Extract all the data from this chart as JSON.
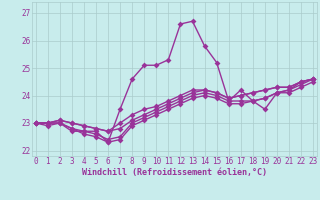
{
  "xlabel": "Windchill (Refroidissement éolien,°C)",
  "background_color": "#c8ecec",
  "line_color": "#993399",
  "grid_color": "#aacccc",
  "xlim": [
    -0.3,
    23.3
  ],
  "ylim": [
    21.8,
    27.4
  ],
  "yticks": [
    22,
    23,
    24,
    25,
    26,
    27
  ],
  "xticks": [
    0,
    1,
    2,
    3,
    4,
    5,
    6,
    7,
    8,
    9,
    10,
    11,
    12,
    13,
    14,
    15,
    16,
    17,
    18,
    19,
    20,
    21,
    22,
    23
  ],
  "hours": [
    0,
    1,
    2,
    3,
    4,
    5,
    6,
    7,
    8,
    9,
    10,
    11,
    12,
    13,
    14,
    15,
    16,
    17,
    18,
    19,
    20,
    21,
    22,
    23
  ],
  "series": [
    [
      23.0,
      22.9,
      23.0,
      22.7,
      22.7,
      22.7,
      22.3,
      23.5,
      24.6,
      25.1,
      25.1,
      25.3,
      26.6,
      26.7,
      25.8,
      25.2,
      23.8,
      24.2,
      23.8,
      23.5,
      24.1,
      24.2,
      24.5,
      24.6
    ],
    [
      23.0,
      23.0,
      23.0,
      22.8,
      22.7,
      22.6,
      22.4,
      22.5,
      23.0,
      23.2,
      23.4,
      23.6,
      23.8,
      24.0,
      24.1,
      24.0,
      23.8,
      23.8,
      23.8,
      23.9,
      24.1,
      24.2,
      24.4,
      24.6
    ],
    [
      23.0,
      23.0,
      23.1,
      23.0,
      22.9,
      22.8,
      22.7,
      22.8,
      23.1,
      23.3,
      23.5,
      23.7,
      23.9,
      24.1,
      24.2,
      24.1,
      23.9,
      24.0,
      24.1,
      24.2,
      24.3,
      24.3,
      24.5,
      24.6
    ],
    [
      23.0,
      23.0,
      23.1,
      23.0,
      22.9,
      22.8,
      22.7,
      23.0,
      23.3,
      23.5,
      23.6,
      23.8,
      24.0,
      24.2,
      24.2,
      24.1,
      23.9,
      24.0,
      24.1,
      24.2,
      24.3,
      24.3,
      24.5,
      24.6
    ],
    [
      23.0,
      23.0,
      23.0,
      22.8,
      22.6,
      22.5,
      22.3,
      22.4,
      22.9,
      23.1,
      23.3,
      23.5,
      23.7,
      23.9,
      24.0,
      23.9,
      23.7,
      23.7,
      23.8,
      23.9,
      24.1,
      24.1,
      24.3,
      24.5
    ]
  ],
  "tick_color": "#993399",
  "label_color": "#993399",
  "markersize": 3,
  "linewidth": 1.0,
  "tick_fontsize": 5.5,
  "label_fontsize": 6.0
}
